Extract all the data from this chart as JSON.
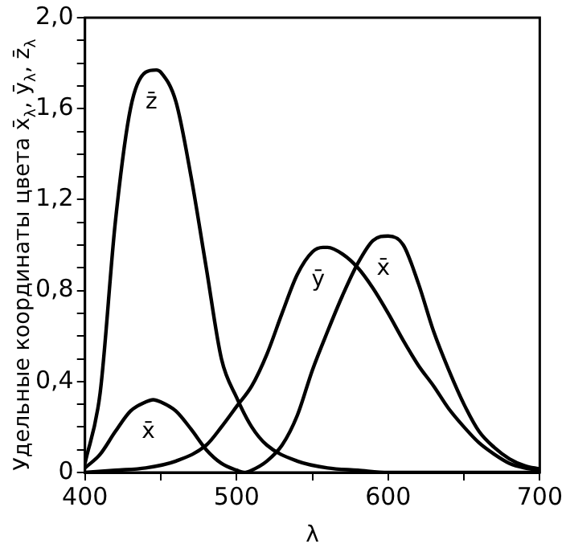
{
  "chart_data": {
    "type": "line",
    "ylabel": "Удельные координаты цвета x̄$_{λ}$, ȳ$_{λ}$, z̄$_{λ}$",
    "xlabel": "λ",
    "xlim": [
      400,
      700
    ],
    "xticks": [
      400,
      {
        "value": 450,
        "label": null
      },
      500,
      {
        "value": 550,
        "label": null
      },
      600,
      {
        "value": 650,
        "label": null
      },
      700
    ],
    "ylim": [
      0,
      2.0
    ],
    "yticks": [
      0,
      {
        "value": 0.1,
        "label": null
      },
      {
        "value": 0.2,
        "label": null
      },
      {
        "value": 0.3,
        "label": null
      },
      {
        "value": 0.4,
        "label": "0,4"
      },
      {
        "value": 0.5,
        "label": null
      },
      {
        "value": 0.6,
        "label": null
      },
      {
        "value": 0.7,
        "label": null
      },
      {
        "value": 0.8,
        "label": "0,8"
      },
      {
        "value": 0.9,
        "label": null
      },
      {
        "value": 1.0,
        "label": null
      },
      {
        "value": 1.1,
        "label": null
      },
      {
        "value": 1.2,
        "label": "1,2"
      },
      {
        "value": 1.3,
        "label": null
      },
      {
        "value": 1.4,
        "label": null
      },
      {
        "value": 1.5,
        "label": null
      },
      {
        "value": 1.6,
        "label": "1,6"
      },
      {
        "value": 1.7,
        "label": null
      },
      {
        "value": 1.8,
        "label": null
      },
      {
        "value": 1.9,
        "label": null
      },
      {
        "value": 2.0,
        "label": "2,0"
      }
    ],
    "grid": false,
    "marker": "none",
    "line_style": "solid",
    "series": [
      {
        "name": "z̄",
        "color": "#000000",
        "x": [
          400,
          410,
          420,
          430,
          440,
          447,
          450,
          460,
          470,
          480,
          490,
          500,
          510,
          520,
          540,
          560,
          580,
          600,
          650,
          700
        ],
        "values": [
          0.04,
          0.35,
          1.1,
          1.6,
          1.76,
          1.77,
          1.76,
          1.63,
          1.3,
          0.9,
          0.5,
          0.33,
          0.2,
          0.12,
          0.05,
          0.02,
          0.01,
          0,
          0,
          0
        ]
      },
      {
        "name": "ȳ",
        "color": "#000000",
        "x": [
          400,
          420,
          440,
          460,
          480,
          490,
          500,
          510,
          520,
          530,
          540,
          550,
          557,
          560,
          570,
          580,
          590,
          600,
          610,
          620,
          630,
          640,
          650,
          660,
          670,
          680,
          690,
          700
        ],
        "values": [
          0,
          0.01,
          0.02,
          0.05,
          0.12,
          0.2,
          0.29,
          0.38,
          0.52,
          0.7,
          0.87,
          0.97,
          0.99,
          0.99,
          0.96,
          0.9,
          0.81,
          0.7,
          0.58,
          0.47,
          0.38,
          0.28,
          0.2,
          0.13,
          0.08,
          0.04,
          0.02,
          0.01
        ]
      },
      {
        "name": "x̄",
        "color": "#000000",
        "x": [
          400,
          410,
          420,
          430,
          440,
          445,
          450,
          460,
          470,
          480,
          490,
          500,
          505,
          510,
          520,
          530,
          540,
          550,
          560,
          570,
          580,
          590,
          600,
          610,
          620,
          630,
          640,
          650,
          660,
          670,
          680,
          690,
          700
        ],
        "values": [
          0.02,
          0.08,
          0.18,
          0.27,
          0.31,
          0.32,
          0.31,
          0.27,
          0.19,
          0.1,
          0.04,
          0.01,
          0,
          0.01,
          0.05,
          0.12,
          0.25,
          0.45,
          0.62,
          0.78,
          0.92,
          1.02,
          1.04,
          1.0,
          0.83,
          0.62,
          0.45,
          0.3,
          0.18,
          0.11,
          0.06,
          0.03,
          0.015
        ]
      }
    ]
  }
}
